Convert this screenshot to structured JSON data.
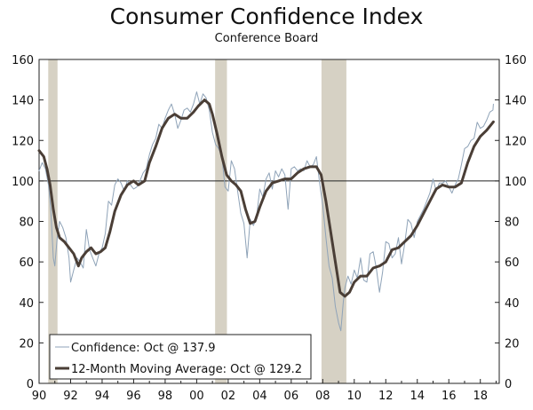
{
  "chart_data": {
    "type": "line",
    "title": "Consumer Confidence Index",
    "subtitle": "Conference Board",
    "xlabel": "",
    "ylabel": "",
    "xlim": [
      1990,
      2019.2
    ],
    "ylim": [
      0,
      160
    ],
    "x_tick_labels": [
      "90",
      "92",
      "94",
      "96",
      "98",
      "00",
      "02",
      "04",
      "06",
      "08",
      "10",
      "12",
      "14",
      "16",
      "18"
    ],
    "x_tick_values": [
      1990,
      1992,
      1994,
      1996,
      1998,
      2000,
      2002,
      2004,
      2006,
      2008,
      2010,
      2012,
      2014,
      2016,
      2018
    ],
    "y_ticks": [
      0,
      20,
      40,
      60,
      80,
      100,
      120,
      140,
      160
    ],
    "reference_line": 100,
    "recessions": [
      {
        "start": 1990.58,
        "end": 1991.17
      },
      {
        "start": 2001.17,
        "end": 2001.92
      },
      {
        "start": 2007.92,
        "end": 2009.5
      }
    ],
    "series": [
      {
        "name": "Confidence: Oct @ 137.9",
        "color": "#8fa3b8",
        "width": 1,
        "points": [
          [
            1990.0,
            105
          ],
          [
            1990.2,
            109
          ],
          [
            1990.4,
            106
          ],
          [
            1990.6,
            98
          ],
          [
            1990.75,
            85
          ],
          [
            1990.9,
            62
          ],
          [
            1991.0,
            58
          ],
          [
            1991.15,
            72
          ],
          [
            1991.3,
            80
          ],
          [
            1991.5,
            77
          ],
          [
            1991.7,
            72
          ],
          [
            1991.9,
            62
          ],
          [
            1992.0,
            50
          ],
          [
            1992.2,
            56
          ],
          [
            1992.4,
            62
          ],
          [
            1992.6,
            60
          ],
          [
            1992.8,
            57
          ],
          [
            1993.0,
            76
          ],
          [
            1993.2,
            66
          ],
          [
            1993.4,
            62
          ],
          [
            1993.6,
            58
          ],
          [
            1993.8,
            64
          ],
          [
            1994.0,
            67
          ],
          [
            1994.2,
            74
          ],
          [
            1994.4,
            90
          ],
          [
            1994.6,
            88
          ],
          [
            1994.8,
            98
          ],
          [
            1995.0,
            101
          ],
          [
            1995.2,
            99
          ],
          [
            1995.4,
            95
          ],
          [
            1995.6,
            100
          ],
          [
            1995.8,
            98
          ],
          [
            1996.0,
            96
          ],
          [
            1996.2,
            97
          ],
          [
            1996.4,
            100
          ],
          [
            1996.6,
            104
          ],
          [
            1996.8,
            106
          ],
          [
            1997.0,
            113
          ],
          [
            1997.2,
            118
          ],
          [
            1997.4,
            121
          ],
          [
            1997.6,
            128
          ],
          [
            1997.8,
            126
          ],
          [
            1998.0,
            131
          ],
          [
            1998.2,
            135
          ],
          [
            1998.4,
            138
          ],
          [
            1998.6,
            133
          ],
          [
            1998.8,
            126
          ],
          [
            1999.0,
            130
          ],
          [
            1999.2,
            135
          ],
          [
            1999.4,
            136
          ],
          [
            1999.6,
            134
          ],
          [
            1999.8,
            138
          ],
          [
            2000.0,
            144
          ],
          [
            2000.2,
            138
          ],
          [
            2000.4,
            143
          ],
          [
            2000.6,
            141
          ],
          [
            2000.8,
            135
          ],
          [
            2001.0,
            124
          ],
          [
            2001.2,
            118
          ],
          [
            2001.4,
            116
          ],
          [
            2001.6,
            112
          ],
          [
            2001.8,
            97
          ],
          [
            2002.0,
            95
          ],
          [
            2002.2,
            110
          ],
          [
            2002.4,
            106
          ],
          [
            2002.6,
            95
          ],
          [
            2002.8,
            84
          ],
          [
            2003.0,
            79
          ],
          [
            2003.2,
            62
          ],
          [
            2003.4,
            81
          ],
          [
            2003.6,
            78
          ],
          [
            2003.8,
            82
          ],
          [
            2004.0,
            96
          ],
          [
            2004.2,
            92
          ],
          [
            2004.4,
            101
          ],
          [
            2004.6,
            104
          ],
          [
            2004.8,
            96
          ],
          [
            2005.0,
            105
          ],
          [
            2005.2,
            102
          ],
          [
            2005.4,
            106
          ],
          [
            2005.6,
            103
          ],
          [
            2005.8,
            86
          ],
          [
            2006.0,
            106
          ],
          [
            2006.2,
            107
          ],
          [
            2006.4,
            105
          ],
          [
            2006.6,
            106
          ],
          [
            2006.8,
            105
          ],
          [
            2007.0,
            110
          ],
          [
            2007.2,
            107
          ],
          [
            2007.4,
            108
          ],
          [
            2007.6,
            112
          ],
          [
            2007.8,
            99
          ],
          [
            2008.0,
            88
          ],
          [
            2008.2,
            72
          ],
          [
            2008.4,
            58
          ],
          [
            2008.6,
            52
          ],
          [
            2008.8,
            38
          ],
          [
            2009.0,
            30
          ],
          [
            2009.15,
            26
          ],
          [
            2009.3,
            40
          ],
          [
            2009.4,
            47
          ],
          [
            2009.6,
            53
          ],
          [
            2009.8,
            49
          ],
          [
            2010.0,
            56
          ],
          [
            2010.2,
            52
          ],
          [
            2010.4,
            62
          ],
          [
            2010.6,
            51
          ],
          [
            2010.8,
            50
          ],
          [
            2011.0,
            64
          ],
          [
            2011.2,
            65
          ],
          [
            2011.4,
            57
          ],
          [
            2011.6,
            45
          ],
          [
            2011.8,
            55
          ],
          [
            2012.0,
            70
          ],
          [
            2012.2,
            69
          ],
          [
            2012.4,
            62
          ],
          [
            2012.6,
            64
          ],
          [
            2012.8,
            72
          ],
          [
            2013.0,
            59
          ],
          [
            2013.2,
            69
          ],
          [
            2013.4,
            81
          ],
          [
            2013.6,
            79
          ],
          [
            2013.8,
            72
          ],
          [
            2014.0,
            80
          ],
          [
            2014.2,
            83
          ],
          [
            2014.4,
            86
          ],
          [
            2014.6,
            90
          ],
          [
            2014.8,
            94
          ],
          [
            2015.0,
            101
          ],
          [
            2015.2,
            95
          ],
          [
            2015.4,
            99
          ],
          [
            2015.6,
            99
          ],
          [
            2015.8,
            100
          ],
          [
            2016.0,
            97
          ],
          [
            2016.2,
            94
          ],
          [
            2016.4,
            98
          ],
          [
            2016.6,
            101
          ],
          [
            2016.8,
            108
          ],
          [
            2017.0,
            116
          ],
          [
            2017.2,
            117
          ],
          [
            2017.4,
            120
          ],
          [
            2017.6,
            121
          ],
          [
            2017.8,
            129
          ],
          [
            2018.0,
            126
          ],
          [
            2018.2,
            127
          ],
          [
            2018.4,
            130
          ],
          [
            2018.6,
            134
          ],
          [
            2018.8,
            135
          ],
          [
            2018.83,
            137.9
          ]
        ]
      },
      {
        "name": "12-Month Moving Average: Oct @ 129.2",
        "color": "#4a3e36",
        "width": 3,
        "points": [
          [
            1990.0,
            115
          ],
          [
            1990.3,
            112
          ],
          [
            1990.5,
            106
          ],
          [
            1990.7,
            98
          ],
          [
            1990.9,
            86
          ],
          [
            1991.1,
            77
          ],
          [
            1991.3,
            72
          ],
          [
            1991.6,
            70
          ],
          [
            1991.9,
            67
          ],
          [
            1992.2,
            64
          ],
          [
            1992.5,
            58
          ],
          [
            1992.7,
            62
          ],
          [
            1993.0,
            65
          ],
          [
            1993.3,
            67
          ],
          [
            1993.6,
            64
          ],
          [
            1993.9,
            65
          ],
          [
            1994.2,
            67
          ],
          [
            1994.5,
            75
          ],
          [
            1994.8,
            85
          ],
          [
            1995.2,
            93
          ],
          [
            1995.6,
            98
          ],
          [
            1996.0,
            100
          ],
          [
            1996.3,
            98
          ],
          [
            1996.7,
            100
          ],
          [
            1997.0,
            109
          ],
          [
            1997.4,
            117
          ],
          [
            1997.8,
            126
          ],
          [
            1998.2,
            131
          ],
          [
            1998.6,
            133
          ],
          [
            1999.0,
            131
          ],
          [
            1999.4,
            131
          ],
          [
            1999.8,
            134
          ],
          [
            2000.1,
            137
          ],
          [
            2000.5,
            140
          ],
          [
            2000.8,
            138
          ],
          [
            2001.0,
            133
          ],
          [
            2001.3,
            123
          ],
          [
            2001.6,
            112
          ],
          [
            2001.9,
            103
          ],
          [
            2002.2,
            100
          ],
          [
            2002.5,
            98
          ],
          [
            2002.8,
            95
          ],
          [
            2003.1,
            86
          ],
          [
            2003.4,
            79
          ],
          [
            2003.7,
            80
          ],
          [
            2004.0,
            87
          ],
          [
            2004.4,
            95
          ],
          [
            2004.8,
            99
          ],
          [
            2005.2,
            100
          ],
          [
            2005.6,
            101
          ],
          [
            2006.0,
            101
          ],
          [
            2006.4,
            104
          ],
          [
            2006.8,
            106
          ],
          [
            2007.2,
            107
          ],
          [
            2007.6,
            107
          ],
          [
            2007.9,
            103
          ],
          [
            2008.2,
            90
          ],
          [
            2008.5,
            75
          ],
          [
            2008.8,
            60
          ],
          [
            2009.1,
            45
          ],
          [
            2009.4,
            43
          ],
          [
            2009.7,
            45
          ],
          [
            2010.0,
            50
          ],
          [
            2010.4,
            53
          ],
          [
            2010.8,
            53
          ],
          [
            2011.2,
            57
          ],
          [
            2011.6,
            58
          ],
          [
            2012.0,
            60
          ],
          [
            2012.4,
            66
          ],
          [
            2012.8,
            67
          ],
          [
            2013.2,
            70
          ],
          [
            2013.6,
            73
          ],
          [
            2014.0,
            78
          ],
          [
            2014.4,
            84
          ],
          [
            2014.8,
            90
          ],
          [
            2015.2,
            96
          ],
          [
            2015.6,
            98
          ],
          [
            2016.0,
            97
          ],
          [
            2016.4,
            97
          ],
          [
            2016.8,
            99
          ],
          [
            2017.2,
            109
          ],
          [
            2017.6,
            117
          ],
          [
            2018.0,
            122
          ],
          [
            2018.4,
            125
          ],
          [
            2018.83,
            129.2
          ]
        ]
      }
    ]
  }
}
